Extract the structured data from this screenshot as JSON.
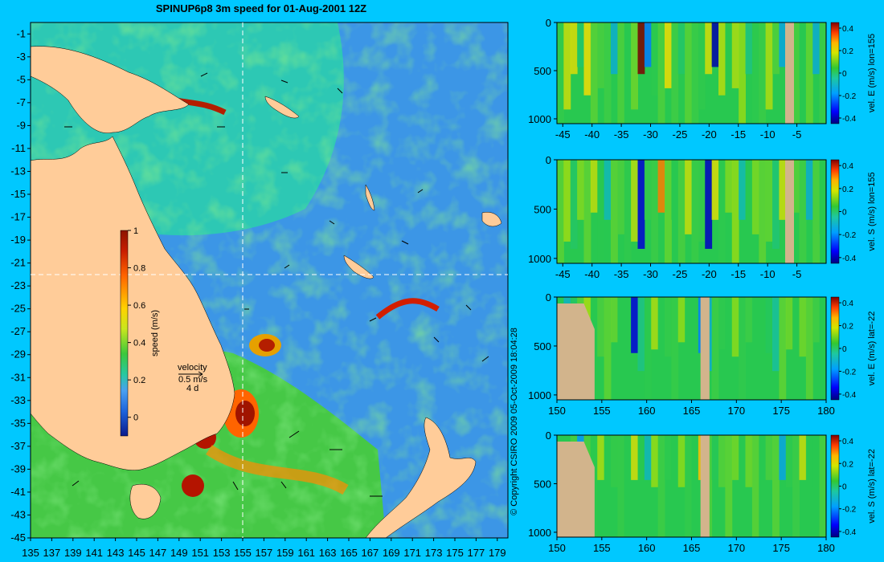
{
  "title": "SPINUP6p8 3m speed for 01-Aug-2001 12Z",
  "copyright": "© Copyright CSIRO 2009   05-Oct-2009 18:04:28",
  "colors": {
    "background": "#00c8ff",
    "land": "#ffcc99",
    "section_land": "#d2b48c",
    "crosshair": "#ffffff"
  },
  "chart_data": [
    {
      "type": "heatmap",
      "name": "map",
      "xlabel": "",
      "ylabel": "",
      "xlim": [
        135,
        180
      ],
      "ylim": [
        -45,
        0
      ],
      "x_ticks": [
        "135",
        "137",
        "139",
        "141",
        "143",
        "145",
        "147",
        "149",
        "151",
        "153",
        "155",
        "157",
        "159",
        "161",
        "163",
        "165",
        "167",
        "169",
        "171",
        "173",
        "175",
        "177",
        "179"
      ],
      "y_ticks": [
        "-1",
        "-3",
        "-5",
        "-7",
        "-9",
        "-11",
        "-13",
        "-15",
        "-17",
        "-19",
        "-21",
        "-23",
        "-25",
        "-27",
        "-29",
        "-31",
        "-33",
        "-35",
        "-37",
        "-39",
        "-41",
        "-43",
        "-45"
      ],
      "crosshair": {
        "lon": 155,
        "lat": -22
      },
      "colorbar": {
        "label": "speed (m/s)",
        "range": [
          -0.1,
          1
        ],
        "ticks": [
          "1",
          "0.8",
          "0.6",
          "0.4",
          "0.2",
          "0"
        ]
      },
      "velocity_key": {
        "title": "velocity",
        "speed": "0.5 m/s",
        "duration": "4 d"
      }
    },
    {
      "type": "heatmap",
      "name": "section-1",
      "ylabel": "vel. E (m/s) lon=155",
      "xlim": [
        -46,
        0
      ],
      "ylim": [
        1050,
        0
      ],
      "x_ticks": [
        "-45",
        "-40",
        "-35",
        "-30",
        "-25",
        "-20",
        "-15",
        "-10",
        "-5"
      ],
      "y_ticks": [
        "0",
        "500",
        "1000"
      ],
      "colorbar_ticks": [
        "0.4",
        "0.2",
        "0",
        "-0.2",
        "-0.4"
      ],
      "colorbar_range": [
        -0.45,
        0.45
      ]
    },
    {
      "type": "heatmap",
      "name": "section-2",
      "ylabel": "vel. S (m/s) lon=155",
      "xlim": [
        -46,
        0
      ],
      "ylim": [
        1050,
        0
      ],
      "x_ticks": [
        "-45",
        "-40",
        "-35",
        "-30",
        "-25",
        "-20",
        "-15",
        "-10",
        "-5"
      ],
      "y_ticks": [
        "0",
        "500",
        "1000"
      ],
      "colorbar_ticks": [
        "0.4",
        "0.2",
        "0",
        "-0.2",
        "-0.4"
      ],
      "colorbar_range": [
        -0.45,
        0.45
      ]
    },
    {
      "type": "heatmap",
      "name": "section-3",
      "ylabel": "vel. E (m/s) lat=-22",
      "xlim": [
        150,
        180
      ],
      "ylim": [
        1050,
        0
      ],
      "x_ticks": [
        "150",
        "155",
        "160",
        "165",
        "170",
        "175",
        "180"
      ],
      "y_ticks": [
        "0",
        "500",
        "1000"
      ],
      "colorbar_ticks": [
        "0.4",
        "0.2",
        "0",
        "-0.2",
        "-0.4"
      ],
      "colorbar_range": [
        -0.45,
        0.45
      ]
    },
    {
      "type": "heatmap",
      "name": "section-4",
      "ylabel": "vel. S (m/s) lat=-22",
      "xlim": [
        150,
        180
      ],
      "ylim": [
        1050,
        0
      ],
      "x_ticks": [
        "150",
        "155",
        "160",
        "165",
        "170",
        "175",
        "180"
      ],
      "y_ticks": [
        "0",
        "500",
        "1000"
      ],
      "colorbar_ticks": [
        "0.4",
        "0.2",
        "0",
        "-0.2",
        "-0.4"
      ],
      "colorbar_range": [
        -0.45,
        0.45
      ]
    }
  ]
}
